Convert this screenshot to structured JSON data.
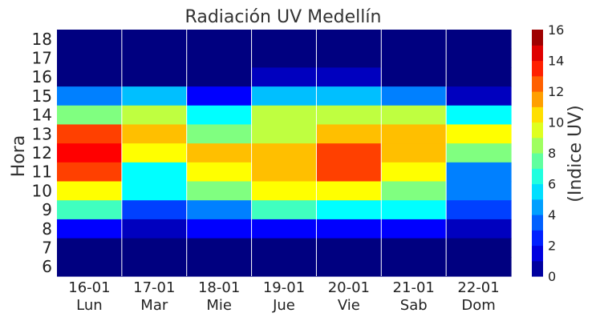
{
  "chart_data": {
    "type": "heatmap",
    "title": "Radiación UV Medellín",
    "ylabel": "Hora",
    "colorbar_label": "(Indice UV)",
    "x_categories": [
      {
        "date": "16-01",
        "day": "Lun"
      },
      {
        "date": "17-01",
        "day": "Mar"
      },
      {
        "date": "18-01",
        "day": "Mie"
      },
      {
        "date": "19-01",
        "day": "Jue"
      },
      {
        "date": "20-01",
        "day": "Vie"
      },
      {
        "date": "21-01",
        "day": "Sab"
      },
      {
        "date": "22-01",
        "day": "Dom"
      }
    ],
    "y_categories": [
      "18",
      "17",
      "16",
      "15",
      "14",
      "13",
      "12",
      "11",
      "10",
      "9",
      "8",
      "7",
      "6"
    ],
    "values": [
      [
        0,
        0,
        0,
        0,
        0,
        0,
        0
      ],
      [
        0,
        0,
        0,
        0,
        0,
        0,
        0
      ],
      [
        0,
        0,
        0,
        1,
        1,
        0,
        0
      ],
      [
        4,
        5,
        2,
        5,
        5,
        4,
        1
      ],
      [
        8,
        9,
        6,
        9,
        9,
        9,
        6
      ],
      [
        13,
        11,
        8,
        9,
        11,
        11,
        10
      ],
      [
        14,
        10,
        11,
        11,
        13,
        11,
        8
      ],
      [
        13,
        6,
        10,
        11,
        13,
        10,
        4
      ],
      [
        10,
        6,
        8,
        10,
        10,
        8,
        4
      ],
      [
        7,
        3,
        4,
        7,
        6,
        6,
        3
      ],
      [
        2,
        1,
        2,
        2,
        2,
        2,
        1
      ],
      [
        0,
        0,
        0,
        0,
        0,
        0,
        0
      ],
      [
        0,
        0,
        0,
        0,
        0,
        0,
        0
      ]
    ],
    "colorbar_ticks": [
      "0",
      "2",
      "4",
      "6",
      "8",
      "10",
      "12",
      "14",
      "16"
    ],
    "vmin": 0,
    "vmax": 16,
    "colormap": "jet",
    "grid": "vertical white lines between days"
  }
}
